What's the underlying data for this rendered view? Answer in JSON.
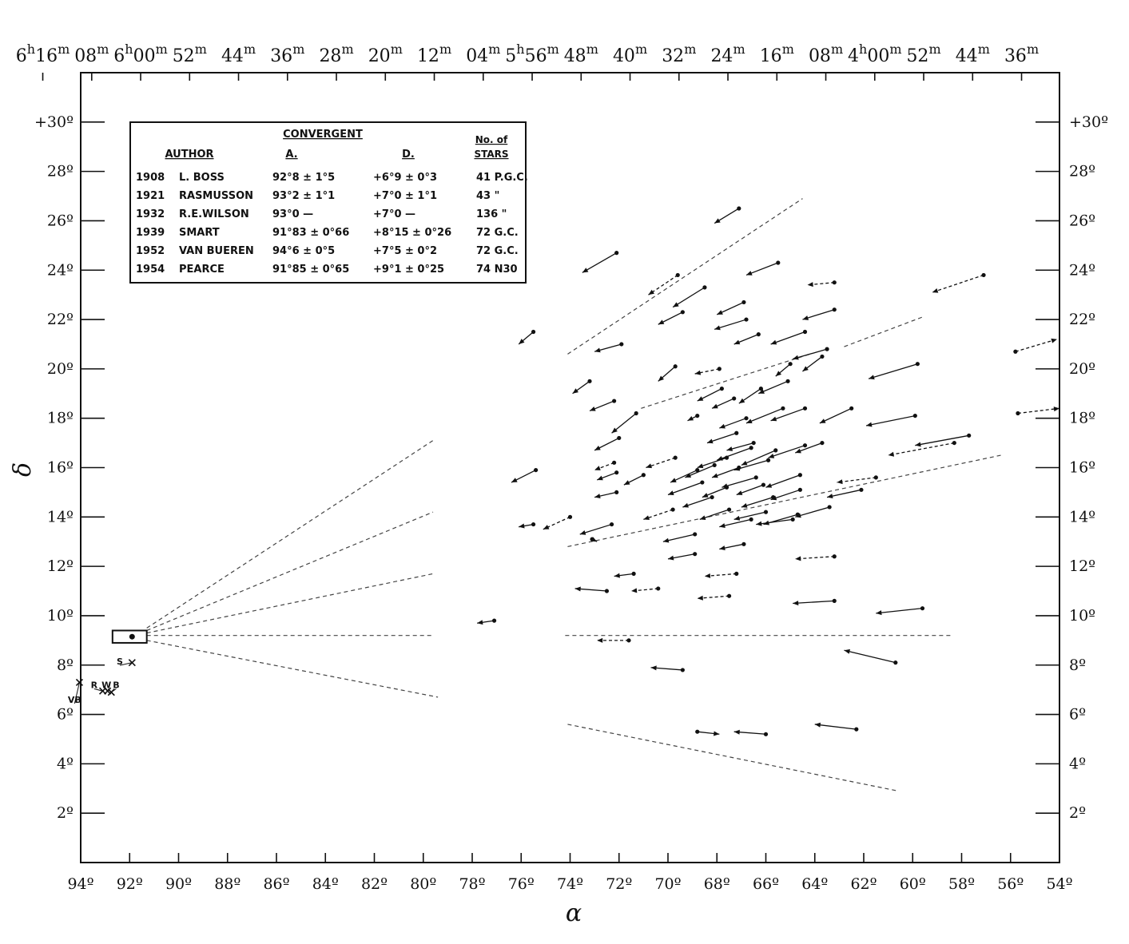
{
  "chart_data": {
    "type": "scatter",
    "title": "",
    "xlabel": "α",
    "ylabel": "δ",
    "xlim": [
      94,
      54
    ],
    "ylim": [
      0,
      32
    ],
    "x_ticks": [
      "94º",
      "92º",
      "90º",
      "88º",
      "86º",
      "84º",
      "82º",
      "80º",
      "78º",
      "76º",
      "74º",
      "72º",
      "70º",
      "68º",
      "66º",
      "64º",
      "62º",
      "60º",
      "58º",
      "56º",
      "54º"
    ],
    "x_tick_values": [
      94,
      92,
      90,
      88,
      86,
      84,
      82,
      80,
      78,
      76,
      74,
      72,
      70,
      68,
      66,
      64,
      62,
      60,
      58,
      56,
      54
    ],
    "y_ticks": [
      "2º",
      "4º",
      "6º",
      "8º",
      "10º",
      "12º",
      "14º",
      "16º",
      "18º",
      "20º",
      "22º",
      "24º",
      "26º",
      "28º",
      "+30º"
    ],
    "y_tick_values": [
      2,
      4,
      6,
      8,
      10,
      12,
      14,
      16,
      18,
      20,
      22,
      24,
      26,
      28,
      30
    ],
    "top_ticks": [
      {
        "x": 95.55,
        "base": "6",
        "sup1": "h",
        "mid": "16",
        "sup2": "m"
      },
      {
        "x": 93.55,
        "base": "08",
        "sup1": "",
        "mid": "",
        "sup2": "m"
      },
      {
        "x": 91.55,
        "base": "6",
        "sup1": "h",
        "mid": "00",
        "sup2": "m"
      },
      {
        "x": 89.55,
        "base": "52",
        "sup1": "",
        "mid": "",
        "sup2": "m"
      },
      {
        "x": 87.55,
        "base": "44",
        "sup1": "",
        "mid": "",
        "sup2": "m"
      },
      {
        "x": 85.55,
        "base": "36",
        "sup1": "",
        "mid": "",
        "sup2": "m"
      },
      {
        "x": 83.55,
        "base": "28",
        "sup1": "",
        "mid": "",
        "sup2": "m"
      },
      {
        "x": 81.55,
        "base": "20",
        "sup1": "",
        "mid": "",
        "sup2": "m"
      },
      {
        "x": 79.55,
        "base": "12",
        "sup1": "",
        "mid": "",
        "sup2": "m"
      },
      {
        "x": 77.55,
        "base": "04",
        "sup1": "",
        "mid": "",
        "sup2": "m"
      },
      {
        "x": 75.55,
        "base": "5",
        "sup1": "h",
        "mid": "56",
        "sup2": "m"
      },
      {
        "x": 73.55,
        "base": "48",
        "sup1": "",
        "mid": "",
        "sup2": "m"
      },
      {
        "x": 71.55,
        "base": "40",
        "sup1": "",
        "mid": "",
        "sup2": "m"
      },
      {
        "x": 69.55,
        "base": "32",
        "sup1": "",
        "mid": "",
        "sup2": "m"
      },
      {
        "x": 67.55,
        "base": "24",
        "sup1": "",
        "mid": "",
        "sup2": "m"
      },
      {
        "x": 65.55,
        "base": "16",
        "sup1": "",
        "mid": "",
        "sup2": "m"
      },
      {
        "x": 63.55,
        "base": "08",
        "sup1": "",
        "mid": "",
        "sup2": "m"
      },
      {
        "x": 61.55,
        "base": "4",
        "sup1": "h",
        "mid": "00",
        "sup2": "m"
      },
      {
        "x": 59.55,
        "base": "52",
        "sup1": "",
        "mid": "",
        "sup2": "m"
      },
      {
        "x": 57.55,
        "base": "44",
        "sup1": "",
        "mid": "",
        "sup2": "m"
      },
      {
        "x": 55.55,
        "base": "36",
        "sup1": "",
        "mid": "",
        "sup2": "m"
      }
    ],
    "convergent_box": {
      "x1": 92.7,
      "x2": 91.3,
      "y1": 8.9,
      "y2": 9.4,
      "dot": [
        91.9,
        9.15
      ]
    },
    "convergent_table": {
      "heading": "CONVERGENT",
      "columns": [
        "AUTHOR",
        "A.",
        "D.",
        "No. of STARS"
      ],
      "col_stars_line1": "No. of",
      "col_stars_line2": "STARS",
      "rows": [
        {
          "year": "1908",
          "author": "L. BOSS",
          "a": "92°8 ± 1°5",
          "d": "+6°9 ± 0°3",
          "stars": "41 P.G.C."
        },
        {
          "year": "1921",
          "author": "RASMUSSON",
          "a": "93°2 ± 1°1",
          "d": "+7°0 ± 1°1",
          "stars": "43 \""
        },
        {
          "year": "1932",
          "author": "R.E.WILSON",
          "a": "93°0  —",
          "d": "+7°0  —",
          "stars": "136 \""
        },
        {
          "year": "1939",
          "author": "SMART",
          "a": "91°83 ± 0°66",
          "d": "+8°15 ± 0°26",
          "stars": "72 G.C."
        },
        {
          "year": "1952",
          "author": "VAN BUEREN",
          "a": "94°6 ± 0°5",
          "d": "+7°5 ± 0°2",
          "stars": "72 G.C."
        },
        {
          "year": "1954",
          "author": "PEARCE",
          "a": "91°85 ± 0°65",
          "d": "+9°1 ± 0°25",
          "stars": "74 N30"
        }
      ]
    },
    "author_markers": [
      {
        "label": "S",
        "x": 92.4,
        "y": 8.15,
        "cx": 91.9,
        "cy": 8.1
      },
      {
        "label": "R",
        "x": 93.45,
        "y": 7.2,
        "cx": 93.1,
        "cy": 6.95
      },
      {
        "label": "W",
        "x": 92.95,
        "y": 7.2,
        "cx": 92.9,
        "cy": 6.95
      },
      {
        "label": "B",
        "x": 92.55,
        "y": 7.2,
        "cx": 92.75,
        "cy": 6.9
      },
      {
        "label": "VB",
        "x": 94.25,
        "y": 6.6,
        "cx": 94.05,
        "cy": 7.3
      }
    ],
    "convergence_lines": [
      {
        "x1": 91.3,
        "y1": 9.5,
        "x2": 79.6,
        "y2": 17.1
      },
      {
        "x1": 91.3,
        "y1": 9.4,
        "x2": 79.6,
        "y2": 14.2
      },
      {
        "x1": 91.3,
        "y1": 9.3,
        "x2": 79.6,
        "y2": 11.7
      },
      {
        "x1": 91.3,
        "y1": 9.2,
        "x2": 79.6,
        "y2": 9.2
      },
      {
        "x1": 91.3,
        "y1": 9.0,
        "x2": 79.4,
        "y2": 6.7
      },
      {
        "x1": 74.1,
        "y1": 20.6,
        "x2": 64.5,
        "y2": 26.9
      },
      {
        "x1": 74.1,
        "y1": 12.8,
        "x2": 56.4,
        "y2": 16.5
      },
      {
        "x1": 74.2,
        "y1": 9.2,
        "x2": 58.4,
        "y2": 9.2
      },
      {
        "x1": 74.1,
        "y1": 5.6,
        "x2": 60.6,
        "y2": 2.9
      },
      {
        "x1": 62.8,
        "y1": 20.9,
        "x2": 59.6,
        "y2": 22.1
      },
      {
        "x1": 71.1,
        "y1": 18.4,
        "x2": 64.2,
        "y2": 20.6
      }
    ],
    "proper_motion_vectors": [
      [
        67.1,
        26.5,
        68.1,
        25.9,
        0
      ],
      [
        72.1,
        24.7,
        73.5,
        23.9,
        0
      ],
      [
        65.5,
        24.3,
        66.8,
        23.8,
        0
      ],
      [
        69.6,
        23.8,
        70.8,
        23.0,
        1
      ],
      [
        68.5,
        23.3,
        69.8,
        22.5,
        0
      ],
      [
        63.2,
        23.5,
        64.3,
        23.4,
        1
      ],
      [
        57.1,
        23.8,
        59.2,
        23.1,
        1
      ],
      [
        69.4,
        22.3,
        70.4,
        21.8,
        0
      ],
      [
        66.9,
        22.7,
        68.0,
        22.2,
        0
      ],
      [
        63.2,
        22.4,
        64.5,
        22.0,
        0
      ],
      [
        75.5,
        21.5,
        76.1,
        21.0,
        0
      ],
      [
        71.9,
        21.0,
        73.0,
        20.7,
        0
      ],
      [
        66.8,
        22.0,
        68.1,
        21.6,
        0
      ],
      [
        66.3,
        21.4,
        67.3,
        21.0,
        0
      ],
      [
        64.4,
        21.5,
        65.8,
        21.0,
        0
      ],
      [
        55.8,
        20.7,
        54.1,
        21.2,
        1
      ],
      [
        69.7,
        20.1,
        70.4,
        19.5,
        0
      ],
      [
        67.9,
        20.0,
        68.9,
        19.8,
        1
      ],
      [
        63.5,
        20.8,
        64.9,
        20.4,
        0
      ],
      [
        63.7,
        20.5,
        64.5,
        19.9,
        0
      ],
      [
        59.8,
        20.2,
        61.8,
        19.6,
        0
      ],
      [
        73.2,
        19.5,
        73.9,
        19.0,
        0
      ],
      [
        72.2,
        18.7,
        73.2,
        18.3,
        0
      ],
      [
        71.3,
        18.2,
        72.3,
        17.4,
        0
      ],
      [
        68.8,
        18.1,
        69.2,
        17.9,
        0
      ],
      [
        67.3,
        18.8,
        68.2,
        18.4,
        0
      ],
      [
        66.8,
        18.0,
        67.9,
        17.6,
        0
      ],
      [
        66.2,
        19.2,
        67.1,
        18.6,
        0
      ],
      [
        62.5,
        18.4,
        63.8,
        17.8,
        0
      ],
      [
        59.9,
        18.1,
        61.9,
        17.7,
        0
      ],
      [
        55.7,
        18.2,
        54.0,
        18.4,
        1
      ],
      [
        72.0,
        17.2,
        73.0,
        16.7,
        0
      ],
      [
        67.2,
        17.4,
        68.4,
        17.0,
        0
      ],
      [
        66.5,
        17.0,
        67.6,
        16.7,
        0
      ],
      [
        65.6,
        16.7,
        67.0,
        16.1,
        0
      ],
      [
        64.4,
        16.9,
        65.9,
        16.4,
        0
      ],
      [
        63.7,
        17.0,
        64.8,
        16.6,
        0
      ],
      [
        57.7,
        17.3,
        59.9,
        16.9,
        0
      ],
      [
        58.3,
        17.0,
        61.0,
        16.5,
        1
      ],
      [
        75.4,
        15.9,
        76.4,
        15.4,
        0
      ],
      [
        72.2,
        16.2,
        73.0,
        15.9,
        1
      ],
      [
        72.1,
        15.8,
        72.9,
        15.5,
        0
      ],
      [
        69.7,
        16.4,
        70.9,
        16.0,
        1
      ],
      [
        68.8,
        15.9,
        69.9,
        15.4,
        0
      ],
      [
        68.1,
        16.1,
        69.3,
        15.6,
        0
      ],
      [
        67.1,
        16.0,
        68.2,
        15.6,
        0
      ],
      [
        66.4,
        15.6,
        67.8,
        15.2,
        0
      ],
      [
        64.6,
        15.7,
        66.0,
        15.2,
        0
      ],
      [
        72.1,
        15.0,
        73.0,
        14.8,
        0
      ],
      [
        68.6,
        15.4,
        70.0,
        14.9,
        0
      ],
      [
        67.6,
        15.2,
        68.6,
        14.8,
        0
      ],
      [
        65.7,
        14.8,
        67.0,
        14.4,
        0
      ],
      [
        64.6,
        15.1,
        65.8,
        14.7,
        0
      ],
      [
        61.5,
        15.6,
        63.1,
        15.4,
        1
      ],
      [
        62.1,
        15.1,
        63.5,
        14.8,
        0
      ],
      [
        74.0,
        14.0,
        75.1,
        13.5,
        1
      ],
      [
        72.3,
        13.7,
        73.6,
        13.3,
        0
      ],
      [
        66.0,
        14.2,
        67.3,
        13.9,
        0
      ],
      [
        64.7,
        14.1,
        66.1,
        13.7,
        0
      ],
      [
        63.4,
        14.4,
        64.8,
        14.0,
        0
      ],
      [
        66.6,
        13.9,
        67.9,
        13.6,
        0
      ],
      [
        75.5,
        13.7,
        76.1,
        13.6,
        0
      ],
      [
        68.9,
        13.3,
        70.2,
        13.0,
        0
      ],
      [
        66.9,
        12.9,
        67.9,
        12.7,
        0
      ],
      [
        68.9,
        12.5,
        70.0,
        12.3,
        0
      ],
      [
        63.2,
        12.4,
        64.8,
        12.3,
        1
      ],
      [
        67.2,
        11.7,
        68.5,
        11.6,
        1
      ],
      [
        71.4,
        11.7,
        72.2,
        11.6,
        0
      ],
      [
        70.4,
        11.1,
        71.5,
        11.0,
        1
      ],
      [
        72.5,
        11.0,
        73.8,
        11.1,
        0
      ],
      [
        67.5,
        10.8,
        68.8,
        10.7,
        1
      ],
      [
        63.2,
        10.6,
        64.9,
        10.5,
        0
      ],
      [
        59.6,
        10.3,
        61.5,
        10.1,
        0
      ],
      [
        77.1,
        9.8,
        77.8,
        9.7,
        0
      ],
      [
        71.6,
        9.0,
        72.9,
        9.0,
        1
      ],
      [
        69.4,
        7.8,
        70.7,
        7.9,
        0
      ],
      [
        60.7,
        8.1,
        62.8,
        8.6,
        0
      ],
      [
        68.8,
        5.3,
        67.9,
        5.2,
        0
      ],
      [
        66.0,
        5.2,
        67.3,
        5.3,
        0
      ],
      [
        62.3,
        5.4,
        64.0,
        5.6,
        0
      ],
      [
        73.1,
        13.1,
        72.9,
        13.0,
        0
      ],
      [
        71.0,
        15.7,
        71.8,
        15.3,
        0
      ],
      [
        65.9,
        16.3,
        67.3,
        15.9,
        0
      ],
      [
        65.3,
        18.4,
        66.8,
        17.8,
        0
      ],
      [
        67.5,
        14.3,
        68.7,
        13.9,
        0
      ],
      [
        64.9,
        13.9,
        66.4,
        13.7,
        0
      ],
      [
        69.8,
        14.3,
        71.0,
        13.9,
        1
      ],
      [
        65.1,
        19.5,
        66.3,
        19.0,
        0
      ],
      [
        67.8,
        19.2,
        68.8,
        18.7,
        0
      ],
      [
        66.1,
        15.3,
        67.2,
        14.9,
        0
      ],
      [
        67.6,
        16.4,
        68.8,
        16.0,
        0
      ],
      [
        68.2,
        14.8,
        69.4,
        14.4,
        0
      ],
      [
        65.0,
        20.2,
        65.6,
        19.7,
        0
      ],
      [
        66.6,
        16.8,
        68.0,
        16.3,
        0
      ],
      [
        64.4,
        18.4,
        65.8,
        17.9,
        0
      ]
    ]
  }
}
